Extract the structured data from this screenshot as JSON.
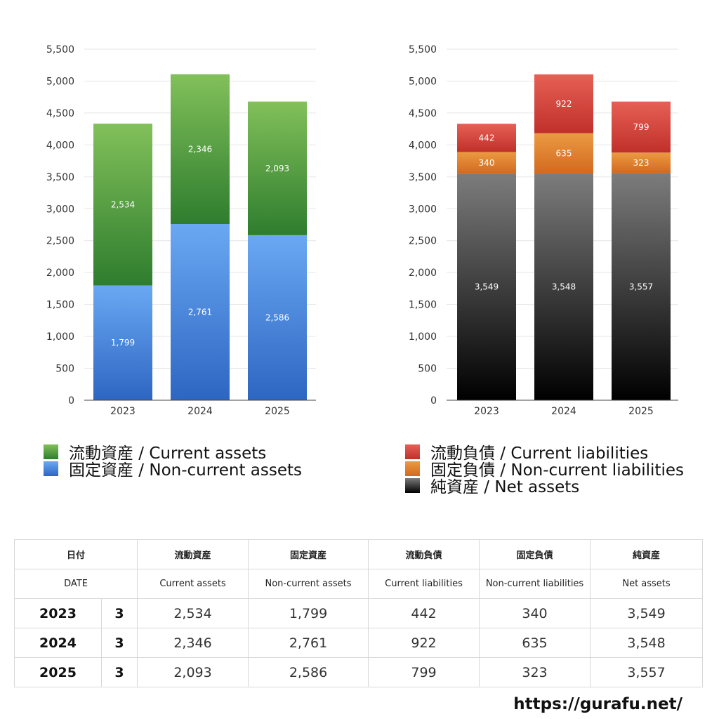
{
  "chart_data": [
    {
      "type": "bar",
      "stacked": true,
      "categories": [
        "2023",
        "2024",
        "2025"
      ],
      "ylim": [
        0,
        5500
      ],
      "yticks": [
        "0",
        "500",
        "1,000",
        "1,500",
        "2,000",
        "2,500",
        "3,000",
        "3,500",
        "4,000",
        "4,500",
        "5,000",
        "5,500"
      ],
      "grid": true,
      "series": [
        {
          "name": "固定資産 / Non-current assets",
          "values": [
            1799,
            2761,
            2586
          ],
          "labels": [
            "1,799",
            "2,761",
            "2,586"
          ],
          "color_top": "#6aa8f3",
          "color_bottom": "#2d66c2"
        },
        {
          "name": "流動資産 / Current assets",
          "values": [
            2534,
            2346,
            2093
          ],
          "labels": [
            "2,534",
            "2,346",
            "2,093"
          ],
          "color_top": "#82c05a",
          "color_bottom": "#2e7d2e"
        }
      ],
      "legend_order": [
        1,
        0
      ],
      "legend_position": "bottom-left"
    },
    {
      "type": "bar",
      "stacked": true,
      "categories": [
        "2023",
        "2024",
        "2025"
      ],
      "ylim": [
        0,
        5500
      ],
      "yticks": [
        "0",
        "500",
        "1,000",
        "1,500",
        "2,000",
        "2,500",
        "3,000",
        "3,500",
        "4,000",
        "4,500",
        "5,000",
        "5,500"
      ],
      "grid": true,
      "series": [
        {
          "name": "純資産 / Net assets",
          "values": [
            3549,
            3548,
            3557
          ],
          "labels": [
            "3,549",
            "3,548",
            "3,557"
          ],
          "color_top": "#7c7c7c",
          "color_bottom": "#000000"
        },
        {
          "name": "固定負債 / Non-current liabilities",
          "values": [
            340,
            635,
            323
          ],
          "labels": [
            "340",
            "635",
            "323"
          ],
          "color_top": "#eb9a42",
          "color_bottom": "#d2691f"
        },
        {
          "name": "流動負債 / Current liabilities",
          "values": [
            442,
            922,
            799
          ],
          "labels": [
            "442",
            "922",
            "799"
          ],
          "color_top": "#e66055",
          "color_bottom": "#c0302a"
        }
      ],
      "legend_order": [
        2,
        1,
        0
      ],
      "legend_position": "bottom-right"
    }
  ],
  "table": {
    "headers_ja": [
      "日付",
      "流動資産",
      "固定資産",
      "流動負債",
      "固定負債",
      "純資産"
    ],
    "headers_en": [
      "DATE",
      "Current assets",
      "Non-current assets",
      "Current liabilities",
      "Non-current liabilities",
      "Net assets"
    ],
    "rows": [
      {
        "year": "2023",
        "month": "3",
        "values": [
          "2,534",
          "1,799",
          "442",
          "340",
          "3,549"
        ]
      },
      {
        "year": "2024",
        "month": "3",
        "values": [
          "2,346",
          "2,761",
          "922",
          "635",
          "3,548"
        ]
      },
      {
        "year": "2025",
        "month": "3",
        "values": [
          "2,093",
          "2,586",
          "799",
          "323",
          "3,557"
        ]
      }
    ]
  },
  "footer": {
    "url": "https://gurafu.net/"
  }
}
